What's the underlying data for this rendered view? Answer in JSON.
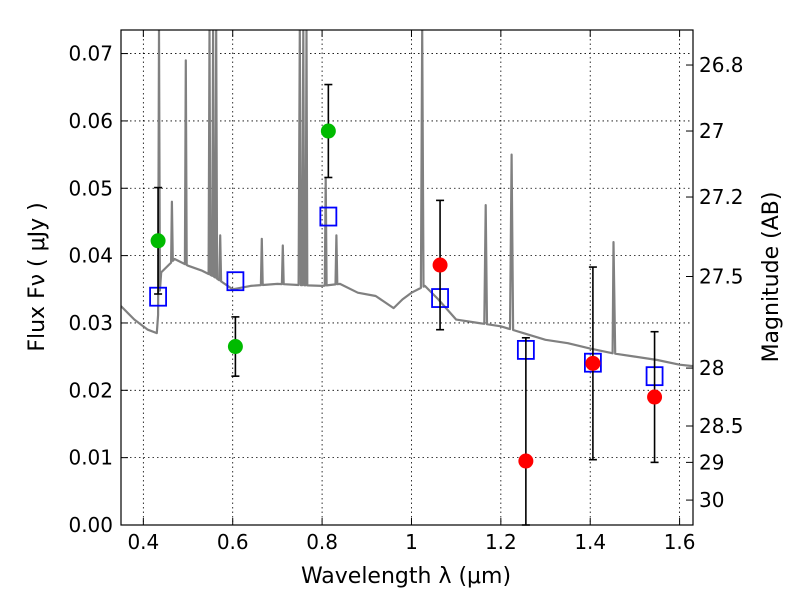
{
  "chart_data": {
    "type": "scatter",
    "xlabel": "Wavelength  λ (μm)",
    "ylabel": "Flux  Fν  ( μJy )",
    "ylabel_right": "Magnitude (AB)",
    "xlim": [
      0.35,
      1.63
    ],
    "ylim": [
      0.0,
      0.0735
    ],
    "x_ticks": [
      0.4,
      0.6,
      0.8,
      1.0,
      1.2,
      1.4,
      1.6
    ],
    "x_tick_labels": [
      "0.4",
      "0.6",
      "0.8",
      "1",
      "1.2",
      "1.4",
      "1.6"
    ],
    "y_ticks": [
      0.0,
      0.01,
      0.02,
      0.03,
      0.04,
      0.05,
      0.06,
      0.07
    ],
    "y_tick_labels": [
      "0.00",
      "0.01",
      "0.02",
      "0.03",
      "0.04",
      "0.05",
      "0.06",
      "0.07"
    ],
    "right_axis_ticks": [
      {
        "label": "26.8",
        "flux": 0.0683
      },
      {
        "label": "27",
        "flux": 0.0585
      },
      {
        "label": "27.2",
        "flux": 0.0487
      },
      {
        "label": "27.5",
        "flux": 0.0369
      },
      {
        "label": "28",
        "flux": 0.0233
      },
      {
        "label": "28.5",
        "flux": 0.0147
      },
      {
        "label": "29",
        "flux": 0.0093
      },
      {
        "label": "30",
        "flux": 0.0037
      }
    ],
    "grid": true,
    "series": [
      {
        "name": "green detections",
        "marker": "circle",
        "color": "#00bb00",
        "points": [
          {
            "x": 0.433,
            "y": 0.0422,
            "err": 0.0079
          },
          {
            "x": 0.606,
            "y": 0.0265,
            "err": 0.0044
          },
          {
            "x": 0.814,
            "y": 0.0585,
            "err": 0.0069
          }
        ]
      },
      {
        "name": "red detections",
        "marker": "circle",
        "color": "#ff0000",
        "points": [
          {
            "x": 1.064,
            "y": 0.0386,
            "err_low": 0.0096,
            "err_high": 0.0096
          },
          {
            "x": 1.256,
            "y": 0.0095,
            "err_low": 0.0095,
            "err_high": 0.0183
          },
          {
            "x": 1.406,
            "y": 0.024,
            "err_low": 0.0143,
            "err_high": 0.0143
          },
          {
            "x": 1.544,
            "y": 0.019,
            "err_low": 0.0097,
            "err_high": 0.0097
          }
        ]
      },
      {
        "name": "model photometry",
        "marker": "open-square",
        "color": "#0000ff",
        "points": [
          {
            "x": 0.433,
            "y": 0.0339
          },
          {
            "x": 0.606,
            "y": 0.0362
          },
          {
            "x": 0.814,
            "y": 0.0458
          },
          {
            "x": 1.064,
            "y": 0.0337
          },
          {
            "x": 1.256,
            "y": 0.026
          },
          {
            "x": 1.406,
            "y": 0.0241
          },
          {
            "x": 1.544,
            "y": 0.0221
          }
        ]
      },
      {
        "name": "model spectrum",
        "type": "line",
        "color": "#808080",
        "continuum": [
          [
            0.35,
            0.0325
          ],
          [
            0.38,
            0.0305
          ],
          [
            0.41,
            0.029
          ],
          [
            0.43,
            0.0285
          ],
          [
            0.44,
            0.0375
          ],
          [
            0.47,
            0.0395
          ],
          [
            0.5,
            0.0385
          ],
          [
            0.53,
            0.0378
          ],
          [
            0.56,
            0.0368
          ],
          [
            0.6,
            0.035
          ],
          [
            0.64,
            0.0355
          ],
          [
            0.7,
            0.0358
          ],
          [
            0.76,
            0.0356
          ],
          [
            0.8,
            0.0355
          ],
          [
            0.84,
            0.0358
          ],
          [
            0.88,
            0.0345
          ],
          [
            0.92,
            0.034
          ],
          [
            0.96,
            0.0322
          ],
          [
            0.98,
            0.0335
          ],
          [
            1.0,
            0.0345
          ],
          [
            1.03,
            0.0355
          ],
          [
            1.06,
            0.0335
          ],
          [
            1.1,
            0.0305
          ],
          [
            1.15,
            0.03
          ],
          [
            1.2,
            0.0295
          ],
          [
            1.25,
            0.0285
          ],
          [
            1.3,
            0.0275
          ],
          [
            1.35,
            0.027
          ],
          [
            1.4,
            0.0262
          ],
          [
            1.45,
            0.0255
          ],
          [
            1.5,
            0.025
          ],
          [
            1.55,
            0.0245
          ],
          [
            1.6,
            0.0238
          ],
          [
            1.63,
            0.0236
          ]
        ],
        "emission_lines": [
          {
            "x": 0.435,
            "peak": 0.0735,
            "width": 0.004
          },
          {
            "x": 0.464,
            "peak": 0.048,
            "width": 0.004
          },
          {
            "x": 0.495,
            "peak": 0.069,
            "width": 0.004
          },
          {
            "x": 0.548,
            "peak": 0.0735,
            "width": 0.004
          },
          {
            "x": 0.556,
            "peak": 0.0735,
            "width": 0.004
          },
          {
            "x": 0.563,
            "peak": 0.0735,
            "width": 0.004
          },
          {
            "x": 0.572,
            "peak": 0.043,
            "width": 0.004
          },
          {
            "x": 0.665,
            "peak": 0.0425,
            "width": 0.004
          },
          {
            "x": 0.712,
            "peak": 0.0415,
            "width": 0.004
          },
          {
            "x": 0.75,
            "peak": 0.0735,
            "width": 0.005
          },
          {
            "x": 0.758,
            "peak": 0.0735,
            "width": 0.005
          },
          {
            "x": 0.765,
            "peak": 0.0735,
            "width": 0.004
          },
          {
            "x": 0.808,
            "peak": 0.0515,
            "width": 0.004
          },
          {
            "x": 0.832,
            "peak": 0.043,
            "width": 0.004
          },
          {
            "x": 1.024,
            "peak": 0.0735,
            "width": 0.006
          },
          {
            "x": 1.166,
            "peak": 0.0475,
            "width": 0.006
          },
          {
            "x": 1.224,
            "peak": 0.055,
            "width": 0.007
          },
          {
            "x": 1.452,
            "peak": 0.042,
            "width": 0.008
          }
        ]
      }
    ]
  }
}
